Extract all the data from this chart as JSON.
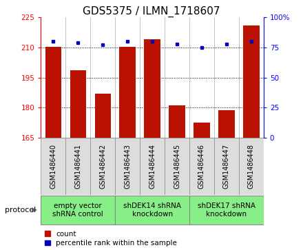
{
  "title": "GDS5375 / ILMN_1718607",
  "samples": [
    "GSM1486440",
    "GSM1486441",
    "GSM1486442",
    "GSM1486443",
    "GSM1486444",
    "GSM1486445",
    "GSM1486446",
    "GSM1486447",
    "GSM1486448"
  ],
  "counts": [
    210.5,
    198.5,
    187.0,
    210.5,
    214.0,
    181.0,
    172.5,
    178.5,
    221.0
  ],
  "percentile_ranks": [
    80,
    79,
    77,
    80,
    80,
    78,
    75,
    78,
    80
  ],
  "ylim_left": [
    165,
    225
  ],
  "ylim_right": [
    0,
    100
  ],
  "yticks_left": [
    165,
    180,
    195,
    210,
    225
  ],
  "yticks_right": [
    0,
    25,
    50,
    75,
    100
  ],
  "bar_color": "#bb1100",
  "dot_color": "#0000bb",
  "groups": [
    {
      "label": "empty vector\nshRNA control",
      "start": 0,
      "end": 3,
      "color": "#88ee88"
    },
    {
      "label": "shDEK14 shRNA\nknockdown",
      "start": 3,
      "end": 6,
      "color": "#88ee88"
    },
    {
      "label": "shDEK17 shRNA\nknockdown",
      "start": 6,
      "end": 9,
      "color": "#88ee88"
    }
  ],
  "protocol_label": "protocol",
  "legend_count_label": "count",
  "legend_percentile_label": "percentile rank within the sample",
  "title_fontsize": 11,
  "tick_fontsize": 7.5,
  "sample_label_fontsize": 7,
  "group_fontsize": 7.5
}
